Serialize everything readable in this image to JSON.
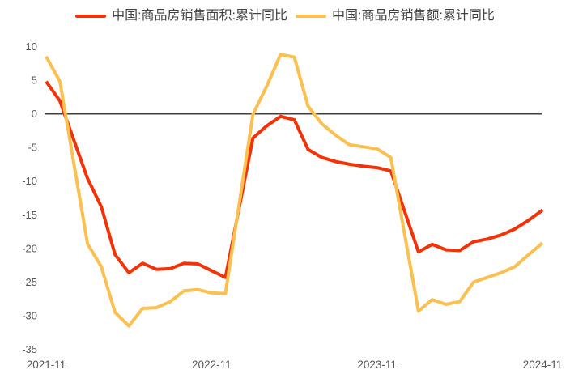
{
  "chart_data": {
    "type": "line",
    "x_labels": [
      "2021-11",
      "2021-12",
      "2022-02",
      "2022-03",
      "2022-04",
      "2022-05",
      "2022-06",
      "2022-07",
      "2022-08",
      "2022-09",
      "2022-10",
      "2022-11",
      "2022-12",
      "2023-02",
      "2023-03",
      "2023-04",
      "2023-05",
      "2023-06",
      "2023-07",
      "2023-08",
      "2023-09",
      "2023-10",
      "2023-11",
      "2023-12",
      "2024-02",
      "2024-03",
      "2024-04",
      "2024-05",
      "2024-06",
      "2024-07",
      "2024-08",
      "2024-09",
      "2024-10",
      "2024-11"
    ],
    "month_offsets": [
      0,
      1,
      3,
      4,
      5,
      6,
      7,
      8,
      9,
      10,
      11,
      12,
      13,
      15,
      16,
      17,
      18,
      19,
      20,
      21,
      22,
      23,
      24,
      25,
      27,
      28,
      29,
      30,
      31,
      32,
      33,
      34,
      35,
      36
    ],
    "series": [
      {
        "name": "中国:商品房销售面积:累计同比",
        "color": "#f43208",
        "values": [
          4.8,
          1.9,
          -9.6,
          -13.8,
          -20.9,
          -23.6,
          -22.2,
          -23.1,
          -23.0,
          -22.2,
          -22.3,
          -23.3,
          -24.3,
          -3.6,
          -1.8,
          -0.4,
          -0.9,
          -5.3,
          -6.5,
          -7.1,
          -7.5,
          -7.8,
          -8.0,
          -8.5,
          -20.5,
          -19.4,
          -20.2,
          -20.3,
          -19.0,
          -18.6,
          -18.0,
          -17.1,
          -15.8,
          -14.3
        ]
      },
      {
        "name": "中国:商品房销售额:累计同比",
        "color": "#fcc051",
        "values": [
          8.5,
          4.8,
          -19.3,
          -22.7,
          -29.5,
          -31.5,
          -28.9,
          -28.8,
          -27.9,
          -26.3,
          -26.1,
          -26.6,
          -26.7,
          -0.1,
          4.1,
          8.8,
          8.4,
          1.1,
          -1.5,
          -3.2,
          -4.6,
          -4.9,
          -5.2,
          -6.5,
          -29.3,
          -27.6,
          -28.3,
          -27.9,
          -25.0,
          -24.3,
          -23.6,
          -22.7,
          -20.9,
          -19.2
        ]
      }
    ],
    "y_ticks": [
      10,
      5,
      0,
      -5,
      -10,
      -15,
      -20,
      -25,
      -30,
      -35
    ],
    "x_axis_ticks": [
      {
        "label": "2021-11",
        "month": 0
      },
      {
        "label": "2022-11",
        "month": 12
      },
      {
        "label": "2023-11",
        "month": 24
      },
      {
        "label": "2024-11",
        "month": 36
      }
    ],
    "ylim": [
      -35,
      10
    ],
    "xlabel": "",
    "ylabel": "",
    "title": "",
    "grid": false,
    "legend_position": "top",
    "zero_line_color": "#404040",
    "axis_text_color": "#595959",
    "background_color": "#ffffff"
  }
}
